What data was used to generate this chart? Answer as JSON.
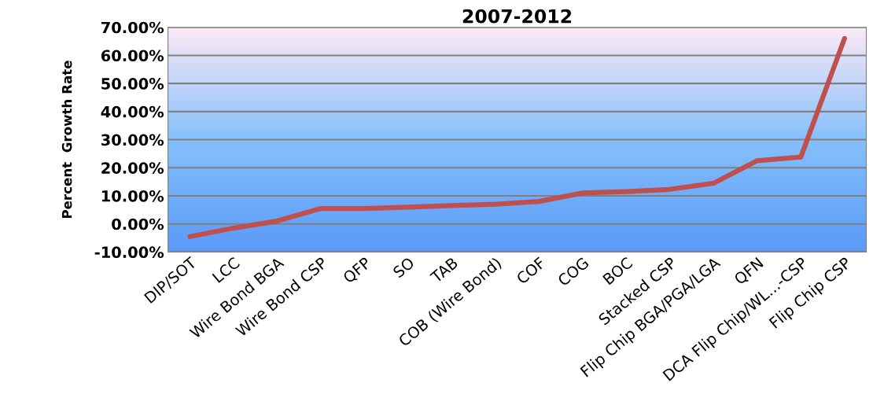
{
  "chart_data": {
    "type": "line",
    "title": "2007-2012",
    "ylabel": "Percent  Growth Rate",
    "categories": [
      "DIP/SOT",
      "LCC",
      "Wire Bond BGA",
      "Wire Bond CSP",
      "QFP",
      "SO",
      "TAB",
      "COB (Wire Bond)",
      "COF",
      "COG",
      "BOC",
      "Stacked CSP",
      "Flip Chip BGA/PGA/LGA",
      "QFN",
      "DCA Flip Chip/WL...-CSP",
      "Flip Chip CSP"
    ],
    "series": [
      {
        "color": "#c0504d",
        "values": [
          -4.5,
          -1.5,
          1.0,
          5.5,
          5.5,
          6.0,
          6.5,
          7.0,
          8.0,
          11.0,
          11.5,
          12.3,
          14.5,
          22.5,
          23.8,
          66.0
        ]
      }
    ],
    "ylim": [
      -10,
      70
    ],
    "yticks": [
      {
        "value": -10,
        "label": "-10.00%"
      },
      {
        "value": 0,
        "label": "0.00%"
      },
      {
        "value": 10,
        "label": "10.00%"
      },
      {
        "value": 20,
        "label": "20.00%"
      },
      {
        "value": 30,
        "label": "30.00%"
      },
      {
        "value": 40,
        "label": "40.00%"
      },
      {
        "value": 50,
        "label": "50.00%"
      },
      {
        "value": 60,
        "label": "60.00%"
      },
      {
        "value": 70,
        "label": "70.00%"
      }
    ],
    "grid": "y",
    "legend": false,
    "marker": "none",
    "line_style": "solid"
  }
}
